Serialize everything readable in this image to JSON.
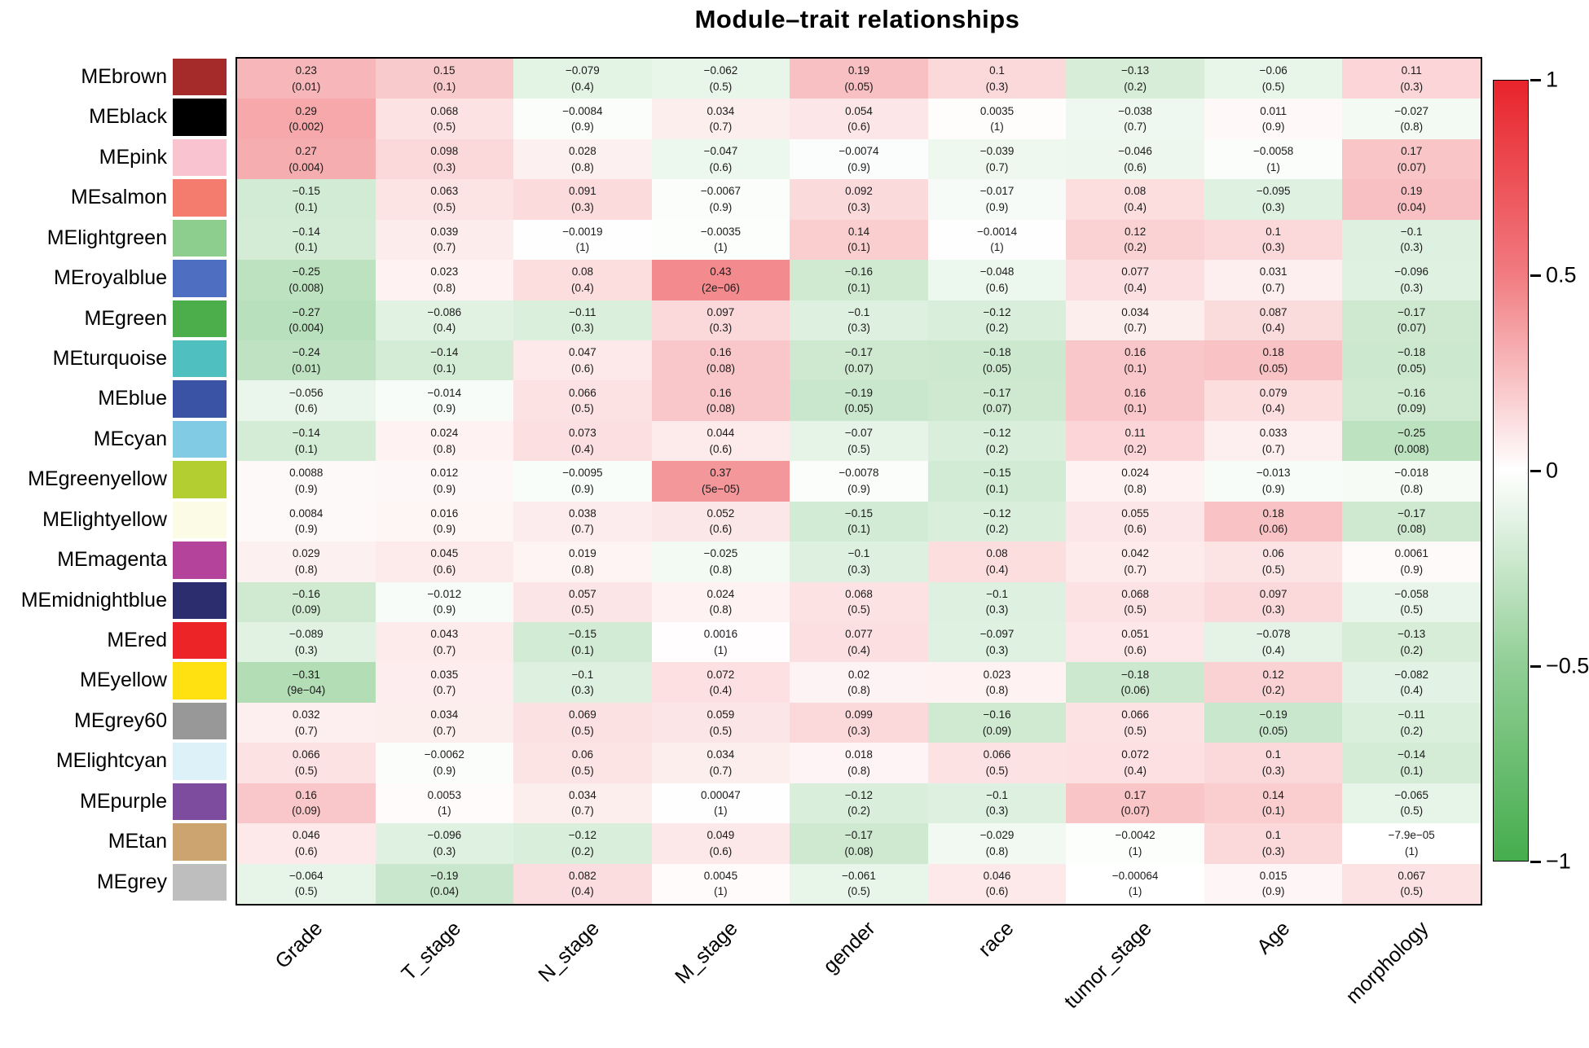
{
  "chart_data": {
    "type": "heatmap",
    "title": "Module–trait relationships",
    "xlabel": "",
    "ylabel": "",
    "value_range": [
      -1,
      1
    ],
    "legend_position": "right",
    "grid": false,
    "columns": [
      "Grade",
      "T_stage",
      "N_stage",
      "M_stage",
      "gender",
      "race",
      "tumor_stage",
      "Age",
      "morphology"
    ],
    "cell_text_format": "correlation over (p-value)",
    "scale": {
      "max_color": "#E8232B",
      "mid_color": "#FFFFFF",
      "min_color": "#45AD4D"
    },
    "colorbar_ticks": [
      "1",
      "0.5",
      "0",
      "−0.5",
      "−1"
    ],
    "rows": [
      {
        "module": "MEbrown",
        "swatch": "#A52A2A",
        "cells": [
          [
            "0.23",
            "(0.01)"
          ],
          [
            "0.15",
            "(0.1)"
          ],
          [
            "−0.079",
            "(0.4)"
          ],
          [
            "−0.062",
            "(0.5)"
          ],
          [
            "0.19",
            "(0.05)"
          ],
          [
            "0.1",
            "(0.3)"
          ],
          [
            "−0.13",
            "(0.2)"
          ],
          [
            "−0.06",
            "(0.5)"
          ],
          [
            "0.11",
            "(0.3)"
          ]
        ]
      },
      {
        "module": "MEblack",
        "swatch": "#000000",
        "cells": [
          [
            "0.29",
            "(0.002)"
          ],
          [
            "0.068",
            "(0.5)"
          ],
          [
            "−0.0084",
            "(0.9)"
          ],
          [
            "0.034",
            "(0.7)"
          ],
          [
            "0.054",
            "(0.6)"
          ],
          [
            "0.0035",
            "(1)"
          ],
          [
            "−0.038",
            "(0.7)"
          ],
          [
            "0.011",
            "(0.9)"
          ],
          [
            "−0.027",
            "(0.8)"
          ]
        ]
      },
      {
        "module": "MEpink",
        "swatch": "#F9C4D0",
        "cells": [
          [
            "0.27",
            "(0.004)"
          ],
          [
            "0.098",
            "(0.3)"
          ],
          [
            "0.028",
            "(0.8)"
          ],
          [
            "−0.047",
            "(0.6)"
          ],
          [
            "−0.0074",
            "(0.9)"
          ],
          [
            "−0.039",
            "(0.7)"
          ],
          [
            "−0.046",
            "(0.6)"
          ],
          [
            "−0.0058",
            "(1)"
          ],
          [
            "0.17",
            "(0.07)"
          ]
        ]
      },
      {
        "module": "MEsalmon",
        "swatch": "#F47C6E",
        "cells": [
          [
            "−0.15",
            "(0.1)"
          ],
          [
            "0.063",
            "(0.5)"
          ],
          [
            "0.091",
            "(0.3)"
          ],
          [
            "−0.0067",
            "(0.9)"
          ],
          [
            "0.092",
            "(0.3)"
          ],
          [
            "−0.017",
            "(0.9)"
          ],
          [
            "0.08",
            "(0.4)"
          ],
          [
            "−0.095",
            "(0.3)"
          ],
          [
            "0.19",
            "(0.04)"
          ]
        ]
      },
      {
        "module": "MElightgreen",
        "swatch": "#8DCD8D",
        "cells": [
          [
            "−0.14",
            "(0.1)"
          ],
          [
            "0.039",
            "(0.7)"
          ],
          [
            "−0.0019",
            "(1)"
          ],
          [
            "−0.0035",
            "(1)"
          ],
          [
            "0.14",
            "(0.1)"
          ],
          [
            "−0.0014",
            "(1)"
          ],
          [
            "0.12",
            "(0.2)"
          ],
          [
            "0.1",
            "(0.3)"
          ],
          [
            "−0.1",
            "(0.3)"
          ]
        ]
      },
      {
        "module": "MEroyalblue",
        "swatch": "#4E6FC1",
        "cells": [
          [
            "−0.25",
            "(0.008)"
          ],
          [
            "0.023",
            "(0.8)"
          ],
          [
            "0.08",
            "(0.4)"
          ],
          [
            "0.43",
            "(2e−06)"
          ],
          [
            "−0.16",
            "(0.1)"
          ],
          [
            "−0.048",
            "(0.6)"
          ],
          [
            "0.077",
            "(0.4)"
          ],
          [
            "0.031",
            "(0.7)"
          ],
          [
            "−0.096",
            "(0.3)"
          ]
        ]
      },
      {
        "module": "MEgreen",
        "swatch": "#4BAE4A",
        "cells": [
          [
            "−0.27",
            "(0.004)"
          ],
          [
            "−0.086",
            "(0.4)"
          ],
          [
            "−0.11",
            "(0.3)"
          ],
          [
            "0.097",
            "(0.3)"
          ],
          [
            "−0.1",
            "(0.3)"
          ],
          [
            "−0.12",
            "(0.2)"
          ],
          [
            "0.034",
            "(0.7)"
          ],
          [
            "0.087",
            "(0.4)"
          ],
          [
            "−0.17",
            "(0.07)"
          ]
        ]
      },
      {
        "module": "MEturquoise",
        "swatch": "#4FBFC0",
        "cells": [
          [
            "−0.24",
            "(0.01)"
          ],
          [
            "−0.14",
            "(0.1)"
          ],
          [
            "0.047",
            "(0.6)"
          ],
          [
            "0.16",
            "(0.08)"
          ],
          [
            "−0.17",
            "(0.07)"
          ],
          [
            "−0.18",
            "(0.05)"
          ],
          [
            "0.16",
            "(0.1)"
          ],
          [
            "0.18",
            "(0.05)"
          ],
          [
            "−0.18",
            "(0.05)"
          ]
        ]
      },
      {
        "module": "MEblue",
        "swatch": "#3A53A4",
        "cells": [
          [
            "−0.056",
            "(0.6)"
          ],
          [
            "−0.014",
            "(0.9)"
          ],
          [
            "0.066",
            "(0.5)"
          ],
          [
            "0.16",
            "(0.08)"
          ],
          [
            "−0.19",
            "(0.05)"
          ],
          [
            "−0.17",
            "(0.07)"
          ],
          [
            "0.16",
            "(0.1)"
          ],
          [
            "0.079",
            "(0.4)"
          ],
          [
            "−0.16",
            "(0.09)"
          ]
        ]
      },
      {
        "module": "MEcyan",
        "swatch": "#82CBE5",
        "cells": [
          [
            "−0.14",
            "(0.1)"
          ],
          [
            "0.024",
            "(0.8)"
          ],
          [
            "0.073",
            "(0.4)"
          ],
          [
            "0.044",
            "(0.6)"
          ],
          [
            "−0.07",
            "(0.5)"
          ],
          [
            "−0.12",
            "(0.2)"
          ],
          [
            "0.11",
            "(0.2)"
          ],
          [
            "0.033",
            "(0.7)"
          ],
          [
            "−0.25",
            "(0.008)"
          ]
        ]
      },
      {
        "module": "MEgreenyellow",
        "swatch": "#B2CE31",
        "cells": [
          [
            "0.0088",
            "(0.9)"
          ],
          [
            "0.012",
            "(0.9)"
          ],
          [
            "−0.0095",
            "(0.9)"
          ],
          [
            "0.37",
            "(5e−05)"
          ],
          [
            "−0.0078",
            "(0.9)"
          ],
          [
            "−0.15",
            "(0.1)"
          ],
          [
            "0.024",
            "(0.8)"
          ],
          [
            "−0.013",
            "(0.9)"
          ],
          [
            "−0.018",
            "(0.8)"
          ]
        ]
      },
      {
        "module": "MElightyellow",
        "swatch": "#FCFBE5",
        "cells": [
          [
            "0.0084",
            "(0.9)"
          ],
          [
            "0.016",
            "(0.9)"
          ],
          [
            "0.038",
            "(0.7)"
          ],
          [
            "0.052",
            "(0.6)"
          ],
          [
            "−0.15",
            "(0.1)"
          ],
          [
            "−0.12",
            "(0.2)"
          ],
          [
            "0.055",
            "(0.6)"
          ],
          [
            "0.18",
            "(0.06)"
          ],
          [
            "−0.17",
            "(0.08)"
          ]
        ]
      },
      {
        "module": "MEmagenta",
        "swatch": "#B4439B",
        "cells": [
          [
            "0.029",
            "(0.8)"
          ],
          [
            "0.045",
            "(0.6)"
          ],
          [
            "0.019",
            "(0.8)"
          ],
          [
            "−0.025",
            "(0.8)"
          ],
          [
            "−0.1",
            "(0.3)"
          ],
          [
            "0.08",
            "(0.4)"
          ],
          [
            "0.042",
            "(0.7)"
          ],
          [
            "0.06",
            "(0.5)"
          ],
          [
            "0.0061",
            "(0.9)"
          ]
        ]
      },
      {
        "module": "MEmidnightblue",
        "swatch": "#2B2D6E",
        "cells": [
          [
            "−0.16",
            "(0.09)"
          ],
          [
            "−0.012",
            "(0.9)"
          ],
          [
            "0.057",
            "(0.5)"
          ],
          [
            "0.024",
            "(0.8)"
          ],
          [
            "0.068",
            "(0.5)"
          ],
          [
            "−0.1",
            "(0.3)"
          ],
          [
            "0.068",
            "(0.5)"
          ],
          [
            "0.097",
            "(0.3)"
          ],
          [
            "−0.058",
            "(0.5)"
          ]
        ]
      },
      {
        "module": "MEred",
        "swatch": "#EC2427",
        "cells": [
          [
            "−0.089",
            "(0.3)"
          ],
          [
            "0.043",
            "(0.7)"
          ],
          [
            "−0.15",
            "(0.1)"
          ],
          [
            "0.0016",
            "(1)"
          ],
          [
            "0.077",
            "(0.4)"
          ],
          [
            "−0.097",
            "(0.3)"
          ],
          [
            "0.051",
            "(0.6)"
          ],
          [
            "−0.078",
            "(0.4)"
          ],
          [
            "−0.13",
            "(0.2)"
          ]
        ]
      },
      {
        "module": "MEyellow",
        "swatch": "#FFE011",
        "cells": [
          [
            "−0.31",
            "(9e−04)"
          ],
          [
            "0.035",
            "(0.7)"
          ],
          [
            "−0.1",
            "(0.3)"
          ],
          [
            "0.072",
            "(0.4)"
          ],
          [
            "0.02",
            "(0.8)"
          ],
          [
            "0.023",
            "(0.8)"
          ],
          [
            "−0.18",
            "(0.06)"
          ],
          [
            "0.12",
            "(0.2)"
          ],
          [
            "−0.082",
            "(0.4)"
          ]
        ]
      },
      {
        "module": "MEgrey60",
        "swatch": "#989898",
        "cells": [
          [
            "0.032",
            "(0.7)"
          ],
          [
            "0.034",
            "(0.7)"
          ],
          [
            "0.069",
            "(0.5)"
          ],
          [
            "0.059",
            "(0.5)"
          ],
          [
            "0.099",
            "(0.3)"
          ],
          [
            "−0.16",
            "(0.09)"
          ],
          [
            "0.066",
            "(0.5)"
          ],
          [
            "−0.19",
            "(0.05)"
          ],
          [
            "−0.11",
            "(0.2)"
          ]
        ]
      },
      {
        "module": "MElightcyan",
        "swatch": "#DDF1F8",
        "cells": [
          [
            "0.066",
            "(0.5)"
          ],
          [
            "−0.0062",
            "(0.9)"
          ],
          [
            "0.06",
            "(0.5)"
          ],
          [
            "0.034",
            "(0.7)"
          ],
          [
            "0.018",
            "(0.8)"
          ],
          [
            "0.066",
            "(0.5)"
          ],
          [
            "0.072",
            "(0.4)"
          ],
          [
            "0.1",
            "(0.3)"
          ],
          [
            "−0.14",
            "(0.1)"
          ]
        ]
      },
      {
        "module": "MEpurple",
        "swatch": "#7D4C9E",
        "cells": [
          [
            "0.16",
            "(0.09)"
          ],
          [
            "0.0053",
            "(1)"
          ],
          [
            "0.034",
            "(0.7)"
          ],
          [
            "0.00047",
            "(1)"
          ],
          [
            "−0.12",
            "(0.2)"
          ],
          [
            "−0.1",
            "(0.3)"
          ],
          [
            "0.17",
            "(0.07)"
          ],
          [
            "0.14",
            "(0.1)"
          ],
          [
            "−0.065",
            "(0.5)"
          ]
        ]
      },
      {
        "module": "MEtan",
        "swatch": "#CBA470",
        "cells": [
          [
            "0.046",
            "(0.6)"
          ],
          [
            "−0.096",
            "(0.3)"
          ],
          [
            "−0.12",
            "(0.2)"
          ],
          [
            "0.049",
            "(0.6)"
          ],
          [
            "−0.17",
            "(0.08)"
          ],
          [
            "−0.029",
            "(0.8)"
          ],
          [
            "−0.0042",
            "(1)"
          ],
          [
            "0.1",
            "(0.3)"
          ],
          [
            "−7.9e−05",
            "(1)"
          ]
        ]
      },
      {
        "module": "MEgrey",
        "swatch": "#BEBEBE",
        "cells": [
          [
            "−0.064",
            "(0.5)"
          ],
          [
            "−0.19",
            "(0.04)"
          ],
          [
            "0.082",
            "(0.4)"
          ],
          [
            "0.0045",
            "(1)"
          ],
          [
            "−0.061",
            "(0.5)"
          ],
          [
            "0.046",
            "(0.6)"
          ],
          [
            "−0.00064",
            "(1)"
          ],
          [
            "0.015",
            "(0.9)"
          ],
          [
            "0.067",
            "(0.5)"
          ]
        ]
      }
    ]
  }
}
